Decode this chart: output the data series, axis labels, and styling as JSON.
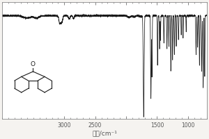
{
  "title": "",
  "xlabel": "波数/cm⁻¹",
  "ylabel": "",
  "xlim": [
    4000,
    700
  ],
  "ylim": [
    0.0,
    1.05
  ],
  "background_color": "#f5f3f0",
  "plot_bg_color": "#ffffff",
  "line_color": "#1a1a1a",
  "x_ticks": [
    3000,
    2500,
    2000,
    1500,
    1000
  ],
  "x_tick_labels": [
    "3000",
    "2500",
    "",
    "1500",
    "1000"
  ],
  "figsize": [
    3.0,
    2.0
  ],
  "dpi": 100,
  "spine_color": "#888888",
  "tick_color": "#555555",
  "xlabel_fontsize": 6.5,
  "tick_fontsize": 5.5
}
